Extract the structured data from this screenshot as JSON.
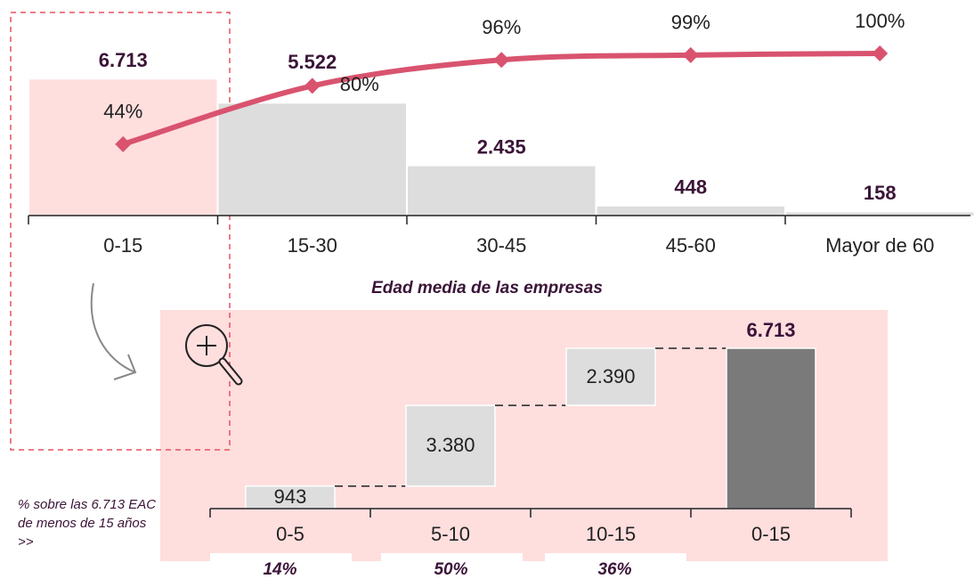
{
  "chart_data": [
    {
      "type": "bar",
      "categories": [
        "0-15",
        "15-30",
        "30-45",
        "45-60",
        "Mayor de 60"
      ],
      "x_label": "Edad media de las empresas",
      "series": [
        {
          "type": "bar",
          "color": "#dddddd",
          "highlight_color": "#ffdede",
          "highlight_index": 0,
          "values": [
            6713,
            5522,
            2435,
            448,
            158
          ],
          "value_labels": [
            "6.713",
            "5.522",
            "2.435",
            "448",
            "158"
          ]
        },
        {
          "type": "line",
          "axis": "y2",
          "color": "#d9536f",
          "values": [
            44,
            80,
            96,
            99,
            100
          ],
          "value_labels": [
            "44%",
            "80%",
            "96%",
            "99%",
            "100%"
          ]
        }
      ],
      "ylim": [
        0,
        8000
      ],
      "y2lim": [
        0,
        100
      ]
    },
    {
      "type": "waterfall",
      "categories": [
        "0-5",
        "5-10",
        "10-15",
        "0-15"
      ],
      "values": [
        943,
        3380,
        2390,
        6713
      ],
      "value_labels": [
        "943",
        "3.380",
        "2.390",
        "6.713"
      ],
      "totals": [
        false,
        false,
        false,
        true
      ],
      "color": "#dddddd",
      "total_color": "#7a7a7a",
      "shares": [
        14,
        50,
        36
      ],
      "share_labels": [
        "14%",
        "50%",
        "36%"
      ],
      "annotation": "% sobre las 6.713 EAC de menos de 15 años >>",
      "ylim": [
        0,
        8000
      ]
    }
  ]
}
